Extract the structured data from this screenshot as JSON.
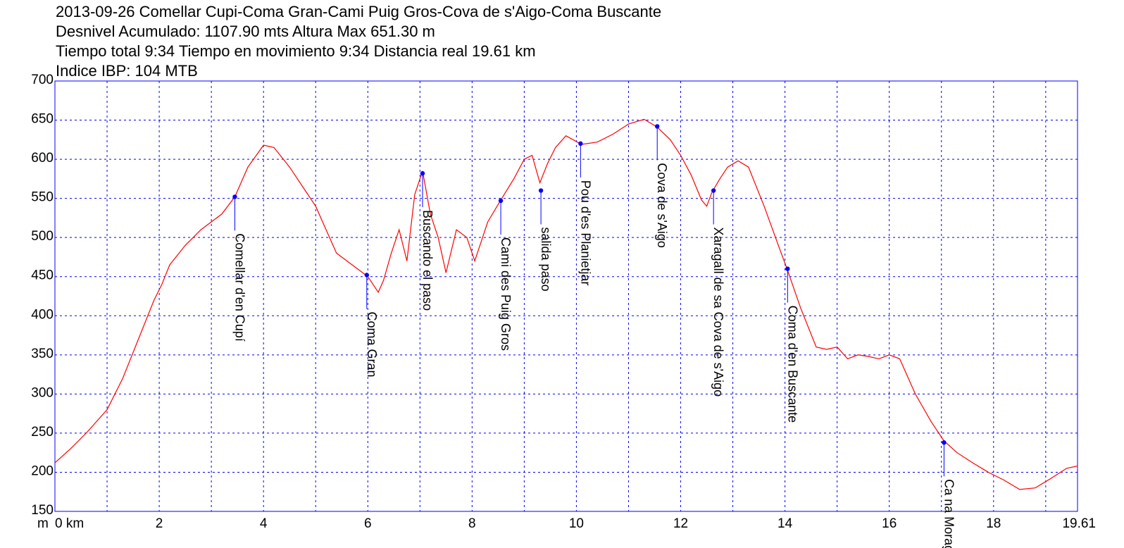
{
  "header": {
    "line1": "2013-09-26 Comellar Cupi-Coma Gran-Cami Puig Gros-Cova de s'Aigo-Coma Buscante",
    "line2": "Desnivel Acumulado: 1107.90 mts  Altura Max 651.30 m",
    "line3": "Tiempo total 9:34 Tiempo en movimiento 9:34 Distancia real 19.61 km",
    "line4": "Indice IBP: 104 MTB"
  },
  "chart_data": {
    "type": "line",
    "xlim": [
      0,
      19.61
    ],
    "ylim": [
      150,
      700
    ],
    "x_unit_label": "m",
    "x_first_tick_label": "0 km",
    "x_ticks": [
      2,
      4,
      6,
      8,
      10,
      12,
      14,
      16,
      18,
      19.61
    ],
    "x_tick_labels": [
      "2",
      "4",
      "6",
      "8",
      "10",
      "12",
      "14",
      "16",
      "18",
      "19.61"
    ],
    "x_grid": [
      1,
      2,
      3,
      4,
      5,
      6,
      7,
      8,
      9,
      10,
      11,
      12,
      13,
      14,
      15,
      16,
      17,
      18,
      19
    ],
    "y_ticks": [
      150,
      200,
      250,
      300,
      350,
      400,
      450,
      500,
      550,
      600,
      650,
      700
    ],
    "y_tick_labels": [
      "150",
      "200",
      "250",
      "300",
      "350",
      "400",
      "450",
      "500",
      "550",
      "600",
      "650",
      "700"
    ],
    "grid": true,
    "line_color": "#ff0000",
    "grid_color": "#0000ff",
    "waypoint_color": "#0000ff",
    "series": [
      {
        "x": [
          0,
          0.3,
          0.6,
          1.0,
          1.3,
          1.6,
          1.9,
          2.05,
          2.2,
          2.5,
          2.8,
          3.0,
          3.2,
          3.45,
          3.7,
          4.0,
          4.2,
          4.5,
          4.8,
          5.0,
          5.2,
          5.4,
          5.6,
          5.8,
          6.0,
          6.1,
          6.2,
          6.3,
          6.45,
          6.6,
          6.75,
          6.9,
          7.05,
          7.2,
          7.35,
          7.5,
          7.7,
          7.9,
          8.05,
          8.15,
          8.3,
          8.55,
          8.8,
          9.0,
          9.15,
          9.3,
          9.45,
          9.6,
          9.8,
          10.1,
          10.4,
          10.7,
          11.0,
          11.3,
          11.55,
          11.8,
          12.0,
          12.2,
          12.4,
          12.5,
          12.6,
          12.75,
          12.9,
          13.1,
          13.3,
          13.6,
          13.9,
          14.05,
          14.3,
          14.6,
          14.8,
          15.0,
          15.2,
          15.4,
          15.6,
          15.8,
          16.0,
          16.2,
          16.5,
          16.8,
          17.05,
          17.3,
          17.6,
          17.9,
          18.2,
          18.5,
          18.8,
          19.1,
          19.4,
          19.61
        ],
        "y": [
          212,
          230,
          250,
          280,
          320,
          370,
          420,
          440,
          465,
          490,
          510,
          520,
          530,
          552,
          590,
          618,
          615,
          590,
          560,
          540,
          510,
          480,
          470,
          460,
          450,
          440,
          430,
          445,
          480,
          510,
          470,
          555,
          585,
          530,
          500,
          455,
          510,
          500,
          470,
          490,
          520,
          548,
          575,
          600,
          605,
          570,
          595,
          615,
          630,
          619,
          622,
          632,
          645,
          651,
          641,
          625,
          605,
          580,
          548,
          540,
          558,
          575,
          590,
          598,
          590,
          540,
          485,
          458,
          410,
          360,
          357,
          360,
          345,
          350,
          348,
          345,
          350,
          345,
          300,
          265,
          240,
          225,
          212,
          200,
          190,
          178,
          180,
          192,
          205,
          208
        ]
      }
    ],
    "waypoints": [
      {
        "name": "Comellar d'en Cupí",
        "x": 3.45,
        "y": 552
      },
      {
        "name": "Coma Gran",
        "x": 5.98,
        "y": 452
      },
      {
        "name": "Buscando el paso",
        "x": 7.05,
        "y": 582
      },
      {
        "name": "Cami des Puig Gros",
        "x": 8.55,
        "y": 547
      },
      {
        "name": "salida paso",
        "x": 9.32,
        "y": 560
      },
      {
        "name": "Pou d'es Planietjar",
        "x": 10.08,
        "y": 620
      },
      {
        "name": "Cova de s'Aigo",
        "x": 11.55,
        "y": 642
      },
      {
        "name": "Xaragall de sa Cova de s'Aigo",
        "x": 12.63,
        "y": 560
      },
      {
        "name": "Coma d'en Buscante",
        "x": 14.05,
        "y": 460
      },
      {
        "name": "Ca na Moragues",
        "x": 17.05,
        "y": 238
      }
    ]
  }
}
